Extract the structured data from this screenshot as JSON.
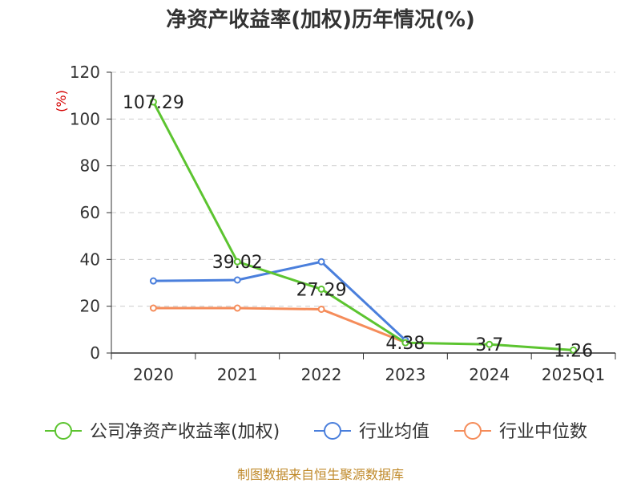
{
  "title": "净资产收益率(加权)历年情况(%)",
  "source": "制图数据来自恒生聚源数据库",
  "chart_data": {
    "type": "line",
    "title": "净资产收益率(加权)历年情况(%)",
    "xlabel": "",
    "ylabel": "(%)",
    "ylim": [
      0,
      120
    ],
    "yticks": [
      "0",
      "20",
      "40",
      "60",
      "80",
      "100",
      "120"
    ],
    "grid": true,
    "legend_position": "bottom",
    "categories": [
      "2020",
      "2021",
      "2022",
      "2023",
      "2024",
      "2025Q1"
    ],
    "series": [
      {
        "name": "公司净资产收益率(加权)",
        "color": "#5cc430",
        "values": [
          107.29,
          39.02,
          27.29,
          4.38,
          3.7,
          1.26
        ],
        "labels": [
          "107.29",
          "39.02",
          "27.29",
          "4.38",
          "3.7",
          "1.26"
        ]
      },
      {
        "name": "行业均值",
        "color": "#4a7fdc",
        "values": [
          30.8,
          31.2,
          39.0,
          5.5,
          null,
          null
        ]
      },
      {
        "name": "行业中位数",
        "color": "#f58c5a",
        "values": [
          19.2,
          19.2,
          18.7,
          4.5,
          null,
          null
        ]
      }
    ]
  }
}
